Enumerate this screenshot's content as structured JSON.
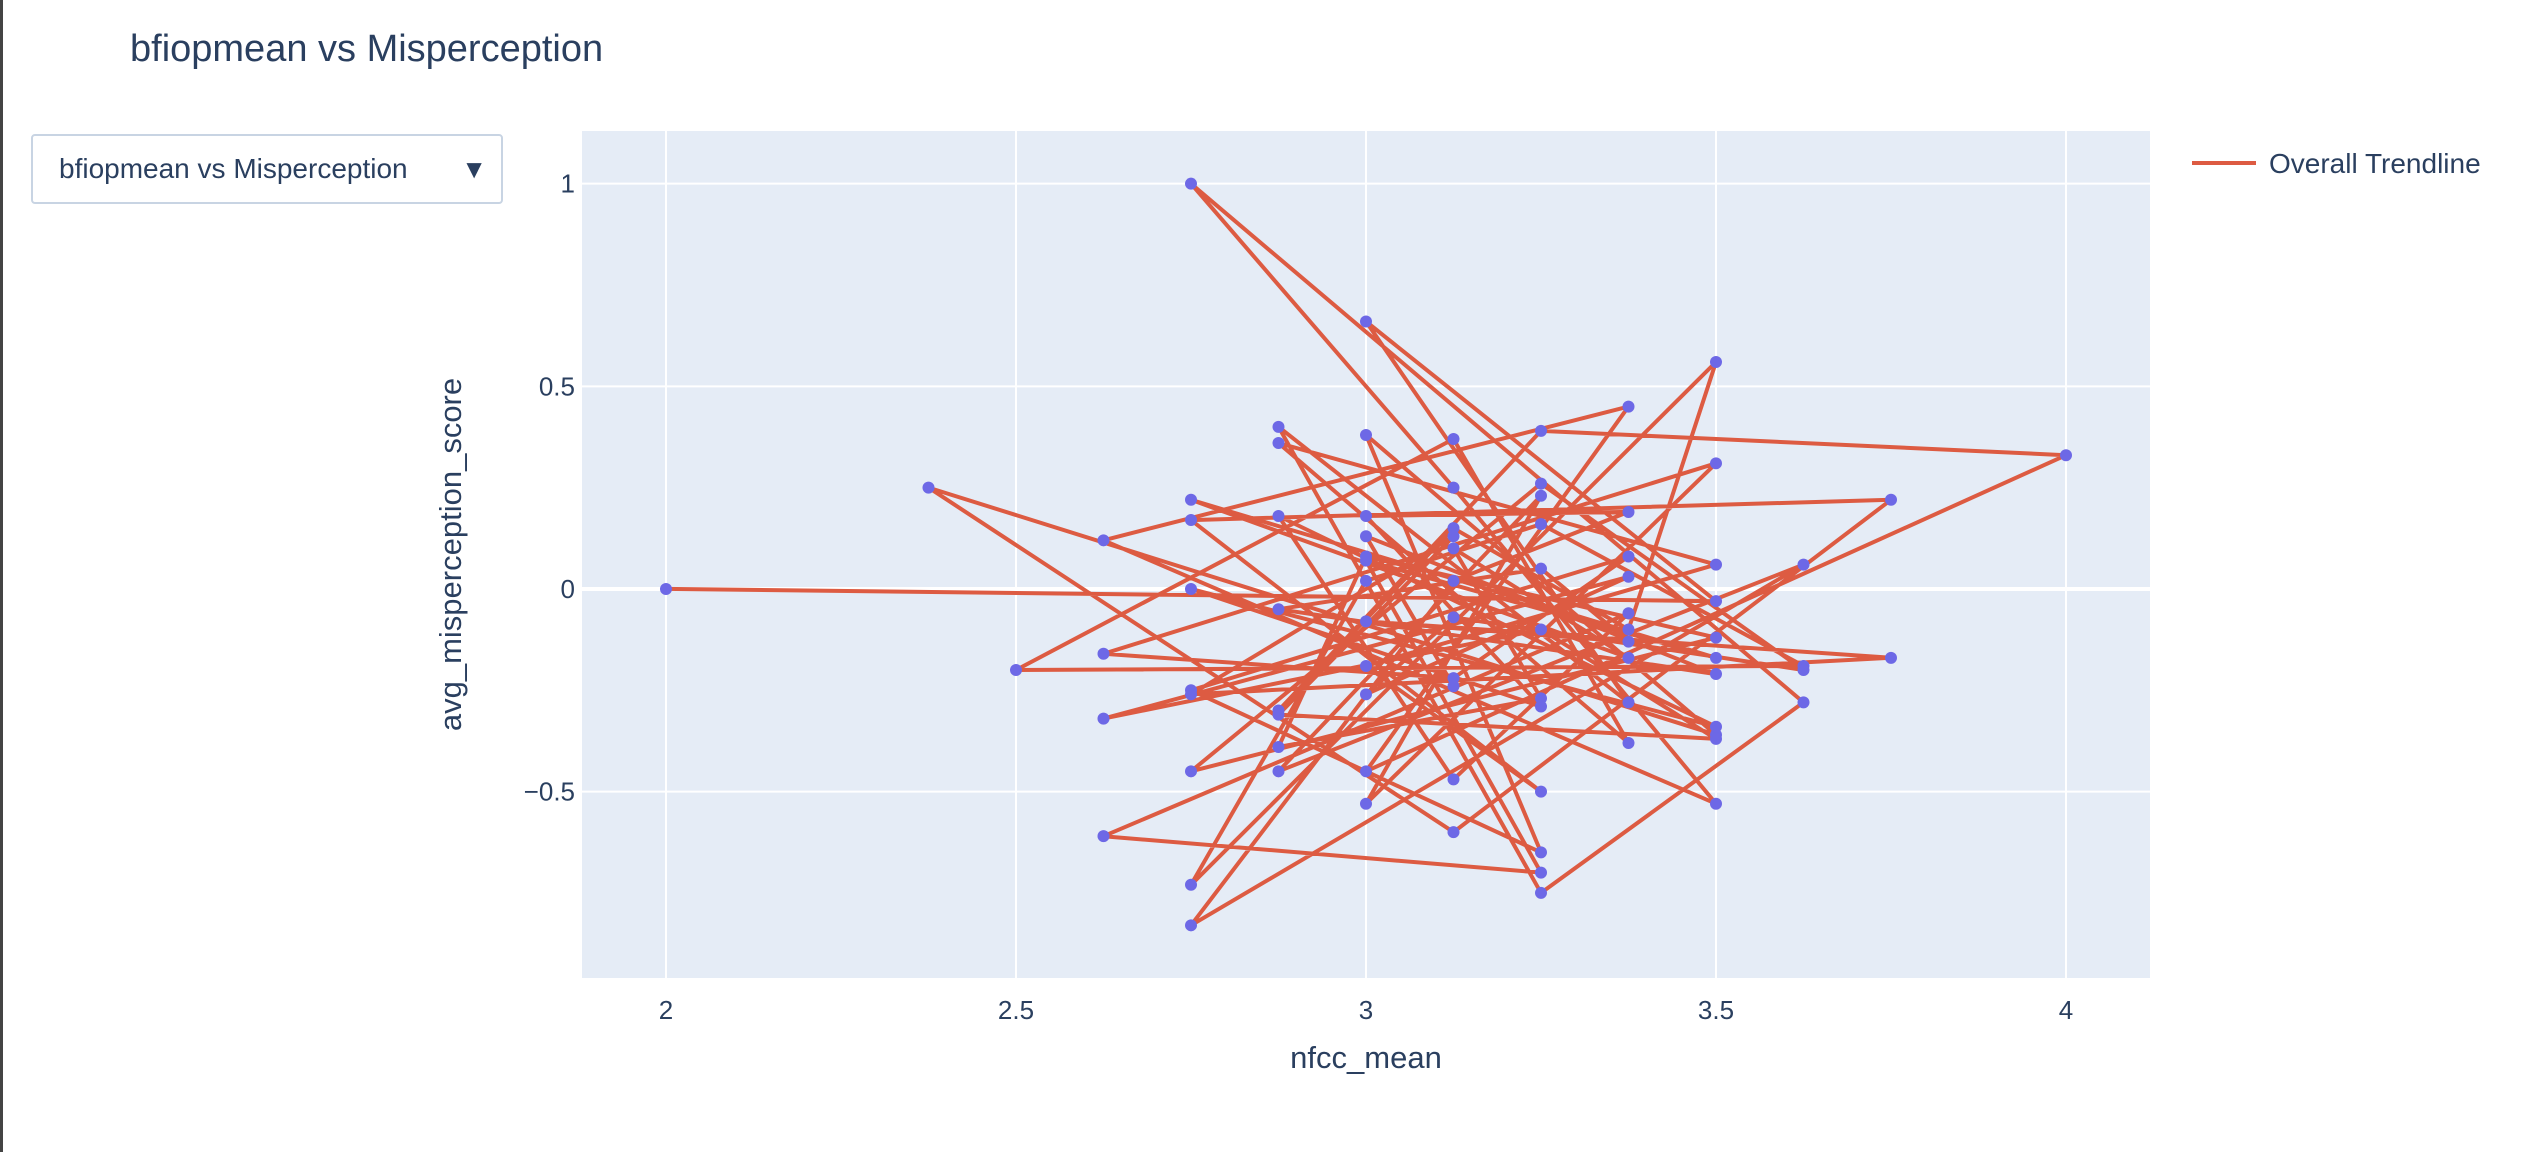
{
  "page": {
    "title": "bfiopmean vs Misperception"
  },
  "dropdown": {
    "selected": "bfiopmean vs Misperception",
    "arrow": "▼"
  },
  "chart_data": {
    "type": "scatter",
    "xlabel": "nfcc_mean",
    "ylabel": "avg_misperception_score",
    "xlim": [
      1.88,
      4.12
    ],
    "ylim": [
      -0.96,
      1.13
    ],
    "x_ticks": [
      2,
      2.5,
      3,
      3.5,
      4
    ],
    "x_tick_labels": [
      "2",
      "2.5",
      "3",
      "3.5",
      "4"
    ],
    "y_ticks": [
      1,
      0.5,
      0,
      -0.5
    ],
    "y_tick_labels": [
      "1",
      "0.5",
      "0",
      "−0.5"
    ],
    "grid": true,
    "legend_position": "top-right",
    "colors": {
      "line": "#dd5b42",
      "marker": "#6d68e6",
      "plot_bg": "#e5ecf6",
      "grid": "#ffffff",
      "text": "#2a3f5f"
    },
    "series": [
      {
        "name": "Overall Trendline",
        "mode": "lines+markers",
        "x": [
          2,
          3.5,
          3,
          3.375,
          2.875,
          3.25,
          3.625,
          2.75,
          3.125,
          3.5,
          2.625,
          3.375,
          3,
          4,
          3.25,
          2.875,
          3.125,
          3.375,
          3.5,
          2.75,
          3,
          3.25,
          3.625,
          2.5,
          3.125,
          3.375,
          2.875,
          3.5,
          3,
          3.25,
          2.75,
          3.75,
          3.125,
          2.375,
          3.5,
          3,
          3.25,
          2.75,
          3.375,
          3.125,
          2.625,
          3.5,
          3,
          3.25,
          2.875,
          3.625,
          2.75,
          3.125,
          3.375,
          3,
          3.25,
          2.75,
          3.5,
          2.875,
          3.125,
          3.375,
          2.625,
          3.25,
          3,
          3.5,
          2.75,
          3.375,
          3.125,
          3.25,
          2.875,
          3,
          3.5,
          2.75,
          3.25,
          3.625,
          3.125,
          3,
          3.375,
          2.625,
          3.25,
          3.5,
          2.875,
          3.125,
          2.75,
          3.75,
          3,
          3.375,
          3.25,
          2.875,
          3.5,
          3,
          3.125
        ],
        "y": [
          0,
          -0.03,
          0.66,
          -0.28,
          0.4,
          -0.75,
          -0.28,
          1,
          0.25,
          -0.53,
          0.12,
          0.45,
          -0.45,
          0.33,
          0.39,
          -0.3,
          0.15,
          -0.1,
          0.56,
          -0.73,
          0.02,
          0.16,
          -0.19,
          -0.2,
          0.37,
          -0.38,
          0.36,
          0.06,
          -0.19,
          -0.5,
          0.17,
          0.22,
          -0.6,
          0.25,
          -0.36,
          0.38,
          -0.65,
          -0.25,
          0.08,
          -0.22,
          -0.16,
          0.31,
          -0.53,
          0.23,
          -0.45,
          0.06,
          -0.83,
          0.02,
          0.19,
          0.18,
          -0.29,
          0,
          -0.34,
          0.18,
          -0.47,
          -0.06,
          -0.61,
          -0.7,
          0.07,
          -0.17,
          0.22,
          -0.17,
          0.1,
          -0.27,
          -0.39,
          0.08,
          -0.12,
          -0.45,
          0.26,
          -0.2,
          -0.07,
          -0.26,
          0.03,
          -0.32,
          -0.1,
          -0.37,
          -0.31,
          0.13,
          -0.26,
          -0.17,
          -0.08,
          -0.13,
          0.05,
          -0.05,
          -0.21,
          0.13,
          -0.24
        ]
      }
    ]
  }
}
